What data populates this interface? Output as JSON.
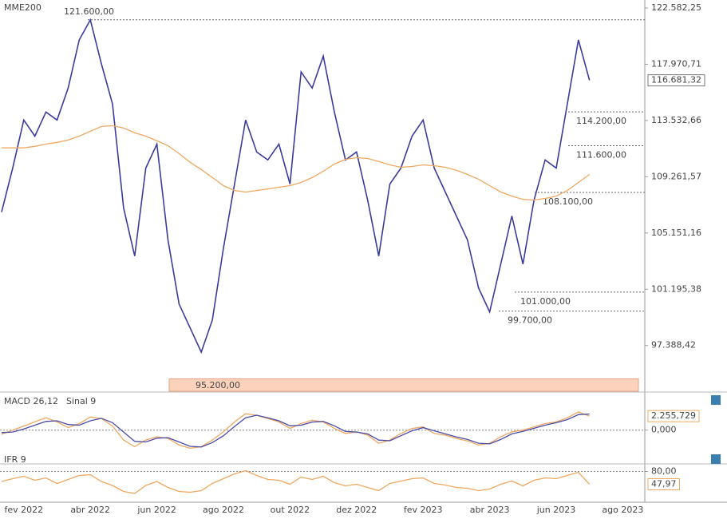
{
  "chart_data": [
    {
      "type": "line",
      "log_scale": true,
      "grid": false,
      "categories": [
        null,
        null,
        "fev 2022",
        null,
        null,
        null,
        null,
        null,
        "abr 2022",
        null,
        null,
        null,
        null,
        null,
        "jun 2022",
        null,
        null,
        null,
        null,
        null,
        "ago 2022",
        null,
        null,
        null,
        null,
        null,
        "out 2022",
        null,
        null,
        null,
        null,
        null,
        "dez 2022",
        null,
        null,
        null,
        null,
        null,
        "fev 2023",
        null,
        null,
        null,
        null,
        null,
        "abr 2023",
        null,
        null,
        null,
        null,
        null,
        "jun 2023",
        null,
        null,
        null,
        null,
        null,
        "ago 2023"
      ],
      "ylim": [
        94400,
        123250
      ],
      "yticks": [
        {
          "value": 122582.25,
          "label": "122.582,25"
        },
        {
          "value": 117970.71,
          "label": "117.970,71"
        },
        {
          "value": 113532.66,
          "label": "113.532,66"
        },
        {
          "value": 109261.57,
          "label": "109.261,57"
        },
        {
          "value": 105151.16,
          "label": "105.151,16"
        },
        {
          "value": 101195.38,
          "label": "101.195,38"
        },
        {
          "value": 97388.42,
          "label": "97.388,42"
        }
      ],
      "series": [
        {
          "color": "#3b3b9e",
          "values": [
            106660,
            109910,
            113570,
            112330,
            114190,
            113570,
            116070,
            119940,
            121590,
            117990,
            114810,
            106950,
            103510,
            109910,
            111720,
            104650,
            100180,
            98560,
            96950,
            99100,
            104070,
            108720,
            113570,
            111120,
            110520,
            111720,
            108720,
            117350,
            116070,
            118630,
            114190,
            110520,
            111120,
            107540,
            103510,
            108720,
            109910,
            112330,
            113570,
            109910,
            108130,
            106380,
            104650,
            101280,
            99640,
            102950,
            106380,
            102950,
            107540,
            110520,
            109910,
            114810,
            119940,
            116681.32,
            null,
            null,
            null
          ],
          "value_labels": [
            null,
            null,
            null,
            null,
            null,
            null,
            null,
            null,
            null,
            null,
            null,
            null,
            null,
            null,
            null,
            null,
            null,
            null,
            null,
            null,
            null,
            null,
            null,
            null,
            null,
            null,
            null,
            null,
            null,
            null,
            null,
            null,
            null,
            null,
            null,
            null,
            null,
            null,
            null,
            null,
            null,
            null,
            null,
            null,
            null,
            null,
            null,
            null,
            null,
            null,
            null,
            null,
            null,
            "116.681,32",
            null,
            null,
            null
          ]
        },
        {
          "name": "MME200",
          "color": "#f0a860",
          "values": [
            111430,
            111430,
            111430,
            111550,
            111720,
            111850,
            112030,
            112330,
            112700,
            113070,
            113130,
            112950,
            112580,
            112330,
            111970,
            111600,
            111000,
            110340,
            109800,
            109200,
            108600,
            108240,
            108130,
            108240,
            108360,
            108480,
            108600,
            108840,
            109200,
            109670,
            110210,
            110570,
            110690,
            110630,
            110400,
            110150,
            109970,
            110030,
            110150,
            110090,
            109970,
            109740,
            109430,
            109080,
            108600,
            108130,
            107830,
            107590,
            107540,
            107660,
            107830,
            108240,
            108840,
            109430,
            null,
            null,
            null
          ]
        }
      ],
      "annotations": [
        {
          "value": 121600,
          "label": "121.600,00"
        },
        {
          "value": 114200,
          "label": "114.200,00"
        },
        {
          "value": 111600,
          "label": "111.600,00"
        },
        {
          "value": 108100,
          "label": "108.100,00"
        },
        {
          "value": 101000,
          "label": "101.000,00"
        },
        {
          "value": 99700,
          "label": "99.700,00"
        }
      ],
      "band": {
        "value": 95200,
        "label": "95.200,00",
        "color": "#fbd3bd"
      }
    },
    {
      "type": "line",
      "ylim": [
        -5300,
        6000
      ],
      "yticks": [
        {
          "value": 0,
          "label": "0,000"
        }
      ],
      "series": [
        {
          "name": "MACD 26,12",
          "color": "#f0a860",
          "values": [
            -660,
            0,
            660,
            1330,
            1990,
            1330,
            400,
            1060,
            2120,
            1860,
            660,
            -1590,
            -2650,
            -1590,
            -1060,
            -1330,
            -2390,
            -2920,
            -2650,
            -1590,
            -270,
            1330,
            2650,
            2390,
            1860,
            1330,
            270,
            1060,
            1590,
            1330,
            270,
            -530,
            -270,
            -800,
            -2120,
            -1590,
            -530,
            270,
            530,
            -530,
            -800,
            -1330,
            -1730,
            -2390,
            -2120,
            -1060,
            -270,
            0,
            530,
            1060,
            1330,
            1990,
            2920,
            2255.729,
            null,
            null,
            null
          ],
          "value_labels": [
            null,
            null,
            null,
            null,
            null,
            null,
            null,
            null,
            null,
            null,
            null,
            null,
            null,
            null,
            null,
            null,
            null,
            null,
            null,
            null,
            null,
            null,
            null,
            null,
            null,
            null,
            null,
            null,
            null,
            null,
            null,
            null,
            null,
            null,
            null,
            null,
            null,
            null,
            null,
            null,
            null,
            null,
            null,
            null,
            null,
            null,
            null,
            null,
            null,
            null,
            null,
            null,
            null,
            "2.255,729",
            null,
            null,
            null
          ]
        },
        {
          "name": "Sinal 9",
          "color": "#4a4aa8",
          "values": [
            -400,
            -300,
            200,
            800,
            1400,
            1500,
            900,
            800,
            1500,
            1900,
            1200,
            -300,
            -1800,
            -1900,
            -1300,
            -1200,
            -1900,
            -2600,
            -2700,
            -2000,
            -900,
            600,
            2000,
            2400,
            2000,
            1500,
            700,
            800,
            1300,
            1400,
            700,
            -200,
            -300,
            -600,
            -1600,
            -1700,
            -900,
            -100,
            400,
            -100,
            -600,
            -1100,
            -1500,
            -2100,
            -2200,
            -1500,
            -600,
            -200,
            300,
            800,
            1200,
            1700,
            2500,
            2600,
            null,
            null,
            null
          ]
        }
      ]
    },
    {
      "type": "line",
      "ylim": [
        5,
        97
      ],
      "yticks": [
        {
          "value": 80,
          "label": "80,00"
        }
      ],
      "series": [
        {
          "name": "IFR 9",
          "color": "#f0a860",
          "values": [
            55,
            62,
            68,
            58,
            64,
            50,
            60,
            70,
            72,
            55,
            45,
            30,
            25,
            45,
            55,
            40,
            30,
            28,
            32,
            50,
            62,
            74,
            82,
            70,
            60,
            58,
            48,
            66,
            60,
            68,
            52,
            44,
            48,
            40,
            32,
            50,
            56,
            62,
            64,
            50,
            46,
            40,
            38,
            32,
            36,
            48,
            56,
            44,
            58,
            64,
            62,
            70,
            78,
            47.97,
            null,
            null,
            null
          ],
          "value_labels": [
            null,
            null,
            null,
            null,
            null,
            null,
            null,
            null,
            null,
            null,
            null,
            null,
            null,
            null,
            null,
            null,
            null,
            null,
            null,
            null,
            null,
            null,
            null,
            null,
            null,
            null,
            null,
            null,
            null,
            null,
            null,
            null,
            null,
            null,
            null,
            null,
            null,
            null,
            null,
            null,
            null,
            null,
            null,
            null,
            null,
            null,
            null,
            null,
            null,
            null,
            null,
            null,
            null,
            "47,97",
            null,
            null,
            null
          ]
        }
      ]
    }
  ]
}
